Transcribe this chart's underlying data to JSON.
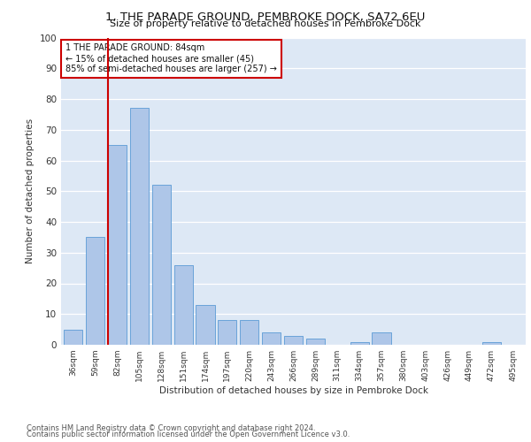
{
  "title": "1, THE PARADE GROUND, PEMBROKE DOCK, SA72 6EU",
  "subtitle": "Size of property relative to detached houses in Pembroke Dock",
  "xlabel": "Distribution of detached houses by size in Pembroke Dock",
  "ylabel": "Number of detached properties",
  "categories": [
    "36sqm",
    "59sqm",
    "82sqm",
    "105sqm",
    "128sqm",
    "151sqm",
    "174sqm",
    "197sqm",
    "220sqm",
    "243sqm",
    "266sqm",
    "289sqm",
    "311sqm",
    "334sqm",
    "357sqm",
    "380sqm",
    "403sqm",
    "426sqm",
    "449sqm",
    "472sqm",
    "495sqm"
  ],
  "values": [
    5,
    35,
    65,
    77,
    52,
    26,
    13,
    8,
    8,
    4,
    3,
    2,
    0,
    1,
    4,
    0,
    0,
    0,
    0,
    1,
    0
  ],
  "bar_color": "#aec6e8",
  "bar_edge_color": "#5b9bd5",
  "vline_index": 2,
  "vline_color": "#cc0000",
  "annotation_text": "1 THE PARADE GROUND: 84sqm\n← 15% of detached houses are smaller (45)\n85% of semi-detached houses are larger (257) →",
  "annotation_box_color": "#ffffff",
  "annotation_box_edge": "#cc0000",
  "footer_line1": "Contains HM Land Registry data © Crown copyright and database right 2024.",
  "footer_line2": "Contains public sector information licensed under the Open Government Licence v3.0.",
  "fig_background": "#ffffff",
  "plot_background": "#dde8f5",
  "grid_color": "#ffffff",
  "ylim": [
    0,
    100
  ],
  "yticks": [
    0,
    10,
    20,
    30,
    40,
    50,
    60,
    70,
    80,
    90,
    100
  ]
}
